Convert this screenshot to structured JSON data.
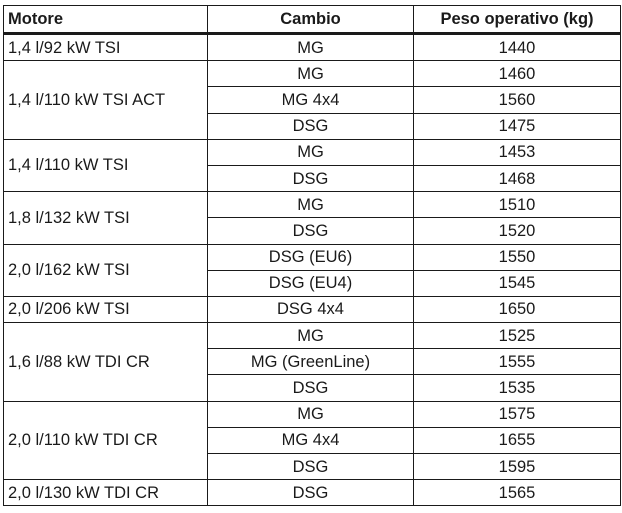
{
  "table": {
    "headers": {
      "motore": "Motore",
      "cambio": "Cambio",
      "peso": "Peso operativo (kg)"
    },
    "groups": [
      {
        "motore": "1,4 l/92 kW TSI",
        "rows": [
          {
            "cambio": "MG",
            "peso": "1440"
          }
        ]
      },
      {
        "motore": "1,4 l/110 kW TSI ACT",
        "rows": [
          {
            "cambio": "MG",
            "peso": "1460"
          },
          {
            "cambio": "MG 4x4",
            "peso": "1560"
          },
          {
            "cambio": "DSG",
            "peso": "1475"
          }
        ]
      },
      {
        "motore": "1,4 l/110 kW TSI",
        "rows": [
          {
            "cambio": "MG",
            "peso": "1453"
          },
          {
            "cambio": "DSG",
            "peso": "1468"
          }
        ]
      },
      {
        "motore": "1,8 l/132 kW TSI",
        "rows": [
          {
            "cambio": "MG",
            "peso": "1510"
          },
          {
            "cambio": "DSG",
            "peso": "1520"
          }
        ]
      },
      {
        "motore": "2,0 l/162 kW TSI",
        "rows": [
          {
            "cambio": "DSG (EU6)",
            "peso": "1550"
          },
          {
            "cambio": "DSG (EU4)",
            "peso": "1545"
          }
        ]
      },
      {
        "motore": "2,0 l/206 kW TSI",
        "rows": [
          {
            "cambio": "DSG 4x4",
            "peso": "1650"
          }
        ]
      },
      {
        "motore": "1,6 l/88 kW TDI CR",
        "rows": [
          {
            "cambio": "MG",
            "peso": "1525"
          },
          {
            "cambio": "MG (GreenLine)",
            "peso": "1555"
          },
          {
            "cambio": "DSG",
            "peso": "1535"
          }
        ]
      },
      {
        "motore": "2,0 l/110 kW TDI CR",
        "rows": [
          {
            "cambio": "MG",
            "peso": "1575"
          },
          {
            "cambio": "MG 4x4",
            "peso": "1655"
          },
          {
            "cambio": "DSG",
            "peso": "1595"
          }
        ]
      },
      {
        "motore": "2,0 l/130 kW TDI CR",
        "rows": [
          {
            "cambio": "DSG",
            "peso": "1565"
          }
        ]
      }
    ]
  }
}
